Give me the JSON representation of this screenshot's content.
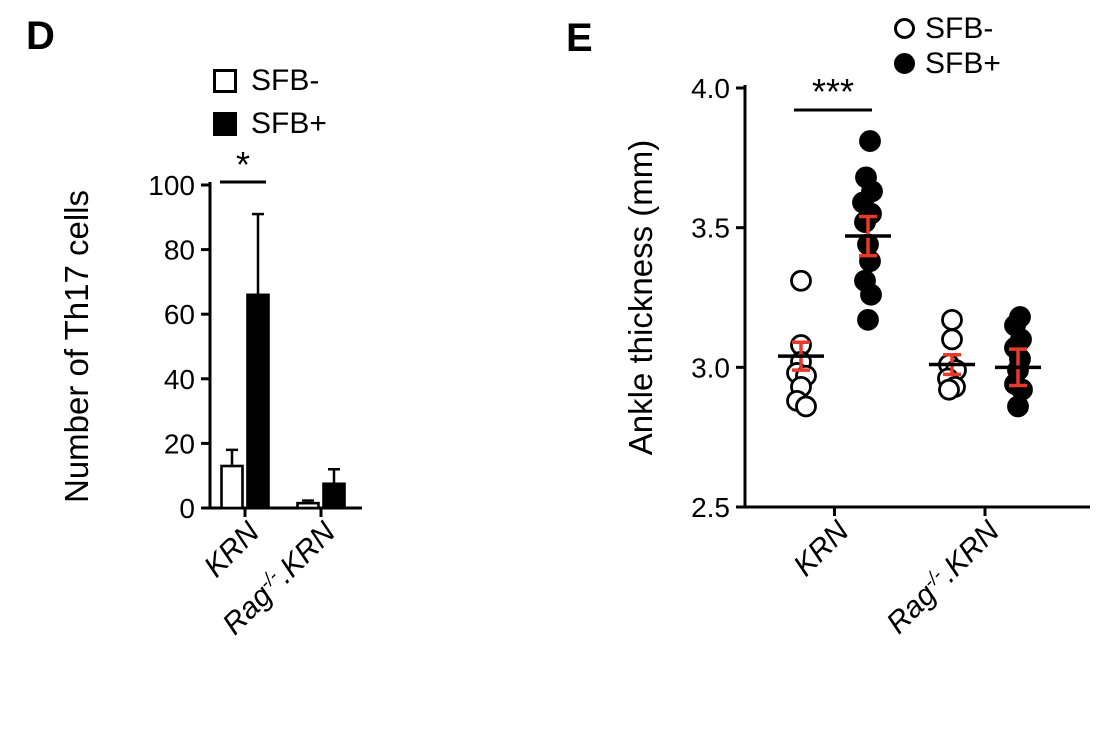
{
  "figure": {
    "background": "#ffffff"
  },
  "panels": {
    "d": {
      "label": "D"
    },
    "e": {
      "label": "E"
    }
  },
  "colors": {
    "axis": "#000000",
    "open_marker_fill": "#ffffff",
    "solid_marker_fill": "#000000",
    "sem_red": "#e8392a"
  },
  "chart_data": [
    {
      "panel": "D",
      "type": "bar",
      "title": "",
      "xlabel": "",
      "ylabel": "Number of Th17 cells",
      "ylim": [
        0,
        100
      ],
      "yticks": [
        0,
        20,
        40,
        60,
        80,
        100
      ],
      "ytick_labels": [
        "0",
        "20",
        "40",
        "60",
        "80",
        "100"
      ],
      "grid": false,
      "legend_position": "top-left",
      "categories": [
        {
          "text": "KRN",
          "italic": true
        },
        {
          "prefix": "Rag",
          "sup": "-/-",
          "suffix": ".KRN",
          "italic": true
        }
      ],
      "series": [
        {
          "name": "SFB-",
          "fill": "#ffffff",
          "values": [
            13,
            1.5
          ],
          "sem_upper": [
            5,
            0.8
          ]
        },
        {
          "name": "SFB+",
          "fill": "#000000",
          "values": [
            66,
            7.5
          ],
          "sem_upper": [
            25,
            4.5
          ]
        }
      ],
      "significance": {
        "label": "*",
        "group_index": 0
      }
    },
    {
      "panel": "E",
      "type": "scatter",
      "title": "",
      "xlabel": "",
      "ylabel": "Ankle thickness (mm)",
      "ylim": [
        2.5,
        4.0
      ],
      "yticks": [
        2.5,
        3.0,
        3.5,
        4.0
      ],
      "ytick_labels": [
        "2.5",
        "3.0",
        "3.5",
        "4.0"
      ],
      "grid": false,
      "legend_position": "top-right",
      "categories": [
        {
          "text": "KRN",
          "italic": true
        },
        {
          "prefix": "Rag",
          "sup": "-/-",
          "suffix": ".KRN",
          "italic": true
        }
      ],
      "series": [
        {
          "name": "SFB-",
          "marker": "open",
          "groups": [
            {
              "category": "KRN",
              "points": [
                [
                  0,
                  3.31
                ],
                [
                  0,
                  3.08
                ],
                [
                  0,
                  3.02
                ],
                [
                  -4,
                  2.98
                ],
                [
                  5,
                  2.97
                ],
                [
                  0,
                  2.93
                ],
                [
                  -4,
                  2.88
                ],
                [
                  5,
                  2.86
                ]
              ],
              "mean": 3.04,
              "sem": 0.05
            },
            {
              "category": "Rag-/-.KRN",
              "points": [
                [
                  0,
                  3.17
                ],
                [
                  0,
                  3.1
                ],
                [
                  -3,
                  3.01
                ],
                [
                  4,
                  2.99
                ],
                [
                  -4,
                  2.96
                ],
                [
                  3,
                  2.93
                ],
                [
                  -3,
                  2.92
                ]
              ],
              "mean": 3.01,
              "sem": 0.035
            }
          ]
        },
        {
          "name": "SFB+",
          "marker": "filled",
          "groups": [
            {
              "category": "KRN",
              "points": [
                [
                  2,
                  3.81
                ],
                [
                  -2,
                  3.68
                ],
                [
                  4,
                  3.63
                ],
                [
                  -5,
                  3.59
                ],
                [
                  3,
                  3.55
                ],
                [
                  -3,
                  3.52
                ],
                [
                  0,
                  3.44
                ],
                [
                  2,
                  3.38
                ],
                [
                  -3,
                  3.31
                ],
                [
                  3,
                  3.26
                ],
                [
                  0,
                  3.17
                ]
              ],
              "mean": 3.47,
              "sem": 0.07
            },
            {
              "category": "Rag-/-.KRN",
              "points": [
                [
                  2,
                  3.18
                ],
                [
                  -3,
                  3.15
                ],
                [
                  3,
                  3.1
                ],
                [
                  -3,
                  3.07
                ],
                [
                  2,
                  3.03
                ],
                [
                  0,
                  2.99
                ],
                [
                  -3,
                  2.94
                ],
                [
                  4,
                  2.92
                ],
                [
                  0,
                  2.86
                ]
              ],
              "mean": 3.0,
              "sem": 0.065
            }
          ]
        }
      ],
      "significance": {
        "label": "***",
        "group_index": 0
      }
    }
  ]
}
